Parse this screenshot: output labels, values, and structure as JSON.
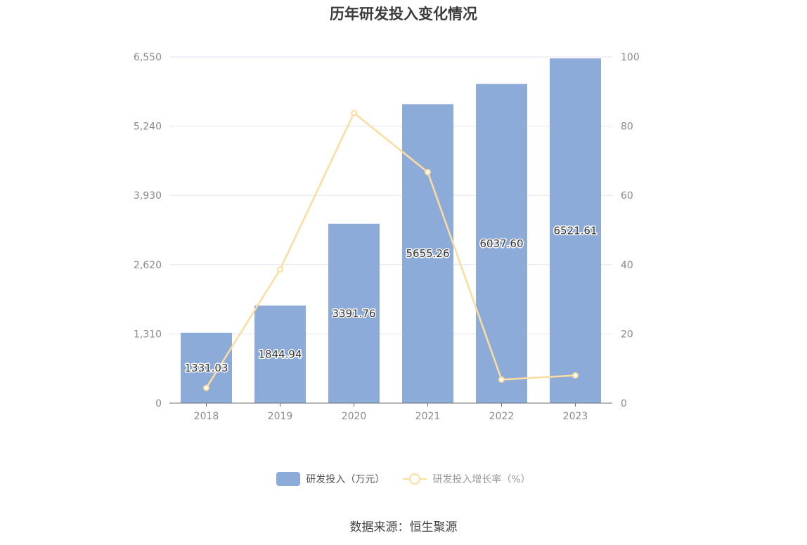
{
  "title": "历年研发投入变化情况",
  "source": "数据来源：恒生聚源",
  "legend": {
    "bar_label": "研发投入（万元）",
    "line_label": "研发投入增长率（%）"
  },
  "colors": {
    "bar": "#8dabd9",
    "line": "#fddd9f",
    "grid": "#e3e6ef",
    "axis": "#6e7079"
  },
  "chart_data": {
    "type": "bar",
    "categories": [
      "2018",
      "2019",
      "2020",
      "2021",
      "2022",
      "2023"
    ],
    "series": [
      {
        "name": "研发投入（万元）",
        "type": "bar",
        "axis": "left",
        "values": [
          1331.03,
          1844.94,
          3391.76,
          5655.26,
          6037.6,
          6521.61
        ],
        "labels": [
          "1331.03",
          "1844.94",
          "3391.76",
          "5655.26",
          "6037.60",
          "6521.61"
        ]
      },
      {
        "name": "研发投入增长率（%）",
        "type": "line",
        "axis": "right",
        "values": [
          4.4,
          38.6,
          83.8,
          66.7,
          6.8,
          8.0
        ]
      }
    ],
    "y_left": {
      "ticks": [
        "0",
        "1,310",
        "2,620",
        "3,930",
        "5,240",
        "6,550"
      ],
      "range": [
        0,
        6550
      ]
    },
    "y_right": {
      "ticks": [
        "0",
        "20",
        "40",
        "60",
        "80",
        "100"
      ],
      "range": [
        0,
        100
      ]
    },
    "grid": true,
    "legend_position": "bottom"
  }
}
